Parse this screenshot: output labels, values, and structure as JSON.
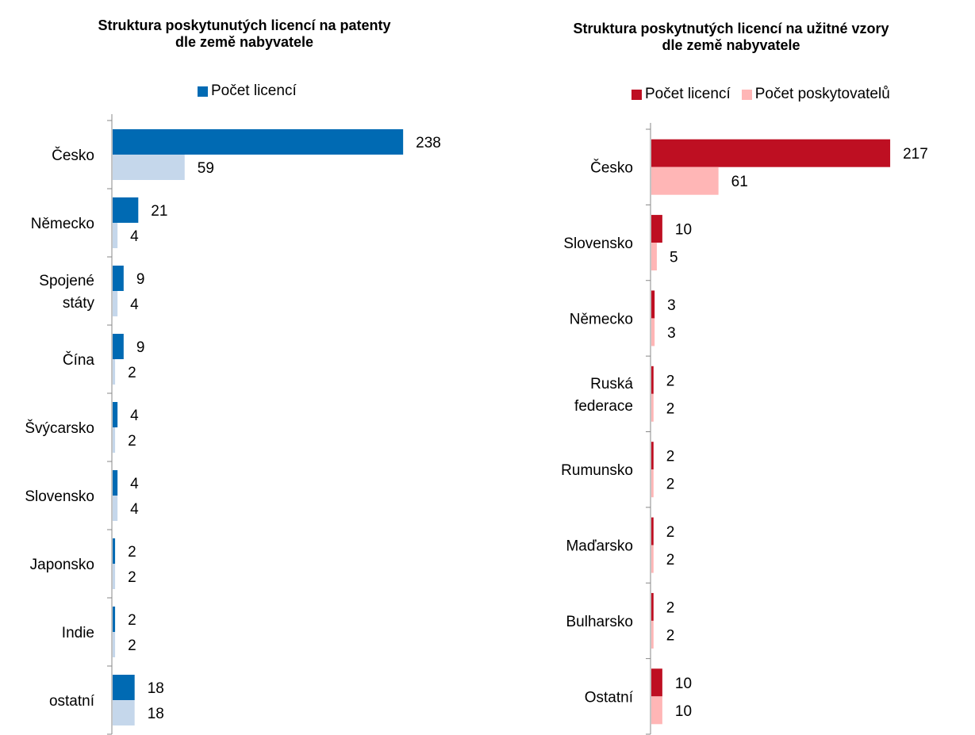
{
  "chart_data": [
    {
      "type": "bar",
      "orientation": "horizontal",
      "title": "Struktura poskytunutých licencí na patenty\ndle země nabyvatele",
      "categories": [
        [
          "Česko"
        ],
        [
          "Německo"
        ],
        [
          "Spojené",
          "státy"
        ],
        [
          "Čína"
        ],
        [
          "Švýcarsko"
        ],
        [
          "Slovensko"
        ],
        [
          "Japonsko"
        ],
        [
          "Indie"
        ],
        [
          "ostatní"
        ]
      ],
      "series": [
        {
          "name": "Počet licencí",
          "values": [
            238,
            21,
            9,
            9,
            4,
            4,
            2,
            2,
            18
          ],
          "color": "#006AB3"
        },
        {
          "values": [
            59,
            4,
            4,
            2,
            2,
            4,
            2,
            2,
            18
          ],
          "color": "#C5D7EB"
        }
      ],
      "xlim": [
        0,
        260
      ],
      "grid": false,
      "legend_placement": "top"
    },
    {
      "type": "bar",
      "orientation": "horizontal",
      "title": "Struktura poskytnutých licencí na užitné vzory\ndle země nabyvatele",
      "categories": [
        [
          "Česko"
        ],
        [
          "Slovensko"
        ],
        [
          "Německo"
        ],
        [
          "Ruská",
          "federace"
        ],
        [
          "Rumunsko"
        ],
        [
          "Maďarsko"
        ],
        [
          "Bulharsko"
        ],
        [
          "Ostatní"
        ]
      ],
      "series": [
        {
          "name": "Počet licencí",
          "values": [
            217,
            10,
            3,
            2,
            2,
            2,
            2,
            10
          ],
          "color": "#BE0F22"
        },
        {
          "name": "Počet poskytovatelů",
          "values": [
            61,
            5,
            3,
            2,
            2,
            2,
            2,
            10
          ],
          "color": "#FFB6B6"
        }
      ],
      "xlim": [
        0,
        240
      ],
      "grid": false,
      "legend_placement": "top"
    }
  ]
}
